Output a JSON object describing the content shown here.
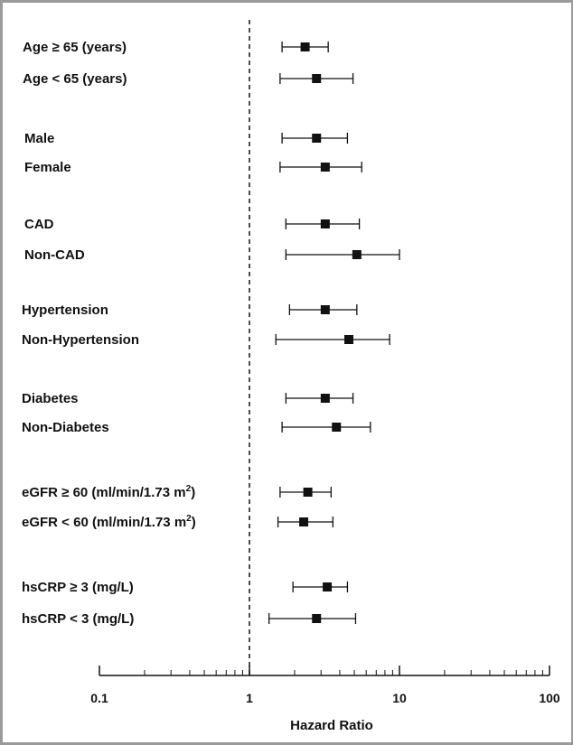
{
  "chart_data": {
    "type": "forest",
    "xlabel": "Hazard Ratio",
    "x_scale": "log",
    "xlim": [
      0.1,
      100
    ],
    "x_ticks": [
      {
        "value": 0.1,
        "label": "0.1"
      },
      {
        "value": 1,
        "label": "1"
      },
      {
        "value": 10,
        "label": "10"
      },
      {
        "value": 100,
        "label": "100"
      }
    ],
    "reference_line": 1,
    "rows": [
      {
        "label": "Age ≥ 65 (years)",
        "hr": 2.35,
        "ci_low": 1.65,
        "ci_high": 3.35
      },
      {
        "label": "Age < 65 (years)",
        "hr": 2.8,
        "ci_low": 1.6,
        "ci_high": 4.9
      },
      {
        "label": "Male",
        "hr": 2.8,
        "ci_low": 1.65,
        "ci_high": 4.5
      },
      {
        "label": "Female",
        "hr": 3.2,
        "ci_low": 1.6,
        "ci_high": 5.6
      },
      {
        "label": "CAD",
        "hr": 3.2,
        "ci_low": 1.75,
        "ci_high": 5.4
      },
      {
        "label": "Non-CAD",
        "hr": 5.2,
        "ci_low": 1.75,
        "ci_high": 10.0
      },
      {
        "label": "Hypertension",
        "hr": 3.2,
        "ci_low": 1.85,
        "ci_high": 5.2
      },
      {
        "label": "Non-Hypertension",
        "hr": 4.6,
        "ci_low": 1.5,
        "ci_high": 8.6
      },
      {
        "label": "Diabetes",
        "hr": 3.2,
        "ci_low": 1.75,
        "ci_high": 4.9
      },
      {
        "label": "Non-Diabetes",
        "hr": 3.8,
        "ci_low": 1.65,
        "ci_high": 6.4
      },
      {
        "label": "eGFR ≥ 60 (ml/min/1.73 m",
        "label_sup": "2",
        "label_end": ")",
        "hr": 2.45,
        "ci_low": 1.6,
        "ci_high": 3.5
      },
      {
        "label": "eGFR < 60 (ml/min/1.73 m",
        "label_sup": "2",
        "label_end": ")",
        "hr": 2.3,
        "ci_low": 1.55,
        "ci_high": 3.6
      },
      {
        "label": "hsCRP ≥ 3 (mg/L)",
        "hr": 3.3,
        "ci_low": 1.95,
        "ci_high": 4.5
      },
      {
        "label": "hsCRP < 3 (mg/L)",
        "hr": 2.8,
        "ci_low": 1.35,
        "ci_high": 5.1
      }
    ],
    "colors": {
      "marker": "#111111",
      "line": "#111111",
      "frame": "#9a9a9a"
    }
  }
}
